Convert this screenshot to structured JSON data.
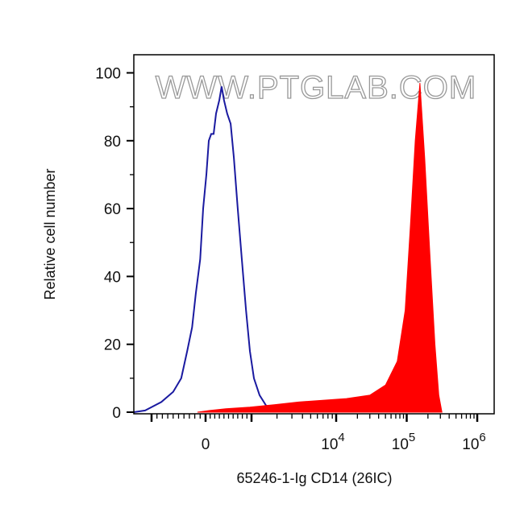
{
  "chart_data": {
    "type": "area",
    "title": "",
    "xlabel": "65246-1-Ig CD14 (26IC)",
    "ylabel": "Relative cell number",
    "x_scale": "biexponential",
    "xlim": [
      -1330,
      1770000
    ],
    "ylim": [
      -0.5,
      105
    ],
    "grid": false,
    "legend": "none",
    "watermark": "WWW.PTGLAB.COM",
    "y_ticks": [
      {
        "value": 0,
        "label": "0"
      },
      {
        "value": 20,
        "label": "20"
      },
      {
        "value": 40,
        "label": "40"
      },
      {
        "value": 60,
        "label": "60"
      },
      {
        "value": 80,
        "label": "80"
      },
      {
        "value": 100,
        "label": "100"
      }
    ],
    "x_ticks": [
      {
        "value": 0,
        "label": "0",
        "sup": ""
      },
      {
        "value": 10000,
        "label": "10",
        "sup": "4"
      },
      {
        "value": 100000,
        "label": "10",
        "sup": "5"
      },
      {
        "value": 1000000,
        "label": "10",
        "sup": "6"
      }
    ],
    "series": [
      {
        "style": "line",
        "color": "#1a1aa0",
        "points": [
          [
            -1330,
            0
          ],
          [
            -1120,
            0.5
          ],
          [
            -820,
            3
          ],
          [
            -600,
            6
          ],
          [
            -450,
            10
          ],
          [
            -340,
            18
          ],
          [
            -250,
            25
          ],
          [
            -180,
            35
          ],
          [
            -100,
            45
          ],
          [
            -45,
            60
          ],
          [
            18,
            70
          ],
          [
            70,
            80
          ],
          [
            123,
            82
          ],
          [
            175,
            82
          ],
          [
            228,
            88
          ],
          [
            300,
            92
          ],
          [
            350,
            96
          ],
          [
            400,
            92
          ],
          [
            470,
            88
          ],
          [
            545,
            85
          ],
          [
            615,
            75
          ],
          [
            700,
            60
          ],
          [
            790,
            45
          ],
          [
            880,
            30
          ],
          [
            965,
            18
          ],
          [
            1068,
            10
          ],
          [
            1245,
            5
          ],
          [
            1484,
            2
          ],
          [
            1770,
            1
          ],
          [
            2080,
            2
          ],
          [
            2430,
            1.5
          ],
          [
            2900,
            0
          ]
        ]
      },
      {
        "style": "filled",
        "color": "#ff0000",
        "points": [
          [
            -150,
            0
          ],
          [
            88,
            0.5
          ],
          [
            440,
            1
          ],
          [
            965,
            1.5
          ],
          [
            1850,
            2.2
          ],
          [
            3600,
            3
          ],
          [
            6900,
            3.5
          ],
          [
            13950,
            4
          ],
          [
            30000,
            5
          ],
          [
            50000,
            8
          ],
          [
            73500,
            15
          ],
          [
            95000,
            30
          ],
          [
            113000,
            55
          ],
          [
            132000,
            80
          ],
          [
            154000,
            97
          ],
          [
            180000,
            75
          ],
          [
            215000,
            45
          ],
          [
            251000,
            20
          ],
          [
            285000,
            5
          ],
          [
            316000,
            0
          ]
        ]
      }
    ]
  }
}
